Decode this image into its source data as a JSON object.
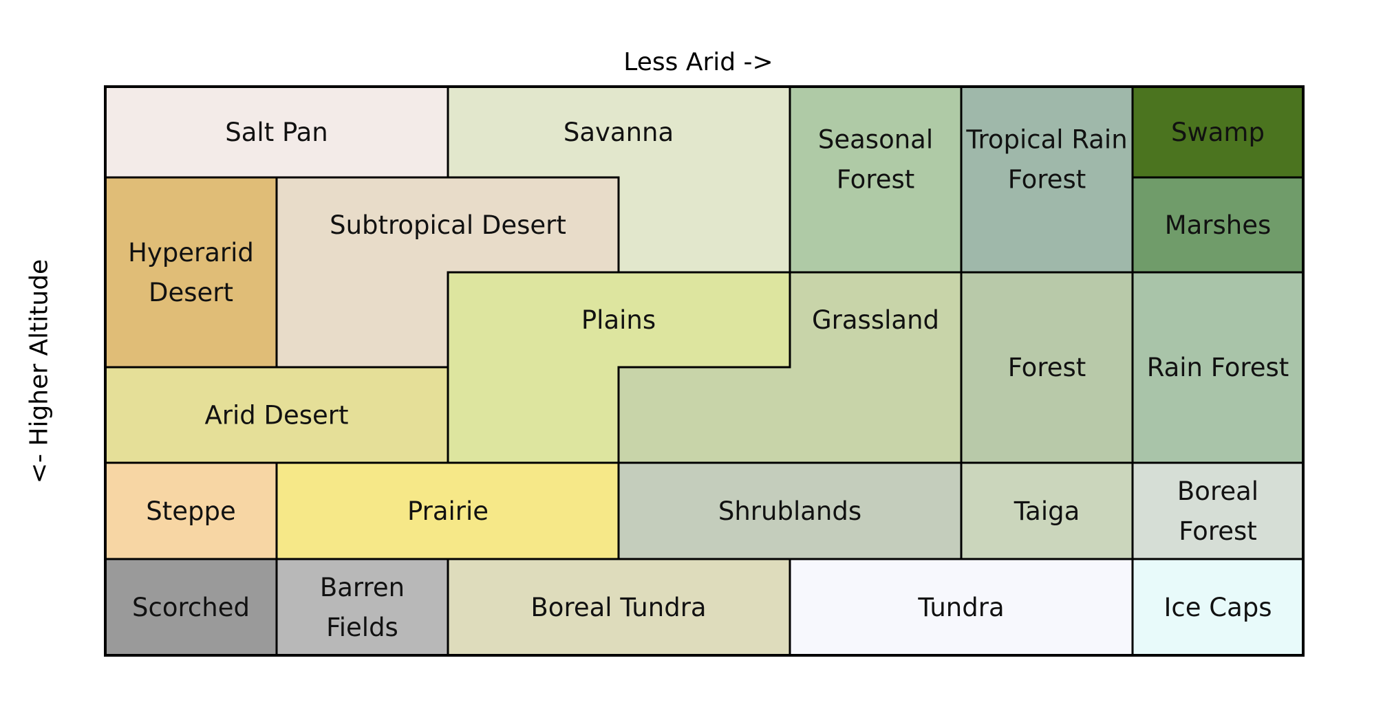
{
  "axes": {
    "top": "Less Arid ->",
    "left": "<- Higher Altitude"
  },
  "biomes": [
    {
      "key": "salt_pan",
      "lines": [
        "Salt Pan"
      ],
      "color": "#f3ebe8"
    },
    {
      "key": "savanna",
      "lines": [
        "Savanna"
      ],
      "color": "#e2e7cc"
    },
    {
      "key": "seasonal_forest",
      "lines": [
        "Seasonal",
        "Forest"
      ],
      "color": "#afcaa6"
    },
    {
      "key": "tropical_rain_forest",
      "lines": [
        "Tropical Rain",
        "Forest"
      ],
      "color": "#9fb8aa"
    },
    {
      "key": "swamp",
      "lines": [
        "Swamp"
      ],
      "color": "#4b741f"
    },
    {
      "key": "marshes",
      "lines": [
        "Marshes"
      ],
      "color": "#709c6a"
    },
    {
      "key": "hyperarid_desert",
      "lines": [
        "Hyperarid",
        "Desert"
      ],
      "color": "#e0bd77"
    },
    {
      "key": "subtropical_desert",
      "lines": [
        "Subtropical Desert"
      ],
      "color": "#e8dcc9"
    },
    {
      "key": "plains",
      "lines": [
        "Plains"
      ],
      "color": "#dde59f"
    },
    {
      "key": "grassland",
      "lines": [
        "Grassland"
      ],
      "color": "#c8d4a9"
    },
    {
      "key": "forest",
      "lines": [
        "Forest"
      ],
      "color": "#b8c9a9"
    },
    {
      "key": "rain_forest",
      "lines": [
        "Rain Forest"
      ],
      "color": "#a9c4a9"
    },
    {
      "key": "arid_desert",
      "lines": [
        "Arid Desert"
      ],
      "color": "#e5df98"
    },
    {
      "key": "steppe",
      "lines": [
        "Steppe"
      ],
      "color": "#f7d6a4"
    },
    {
      "key": "prairie",
      "lines": [
        "Prairie"
      ],
      "color": "#f6e888"
    },
    {
      "key": "shrublands",
      "lines": [
        "Shrublands"
      ],
      "color": "#c4cdbc"
    },
    {
      "key": "taiga",
      "lines": [
        "Taiga"
      ],
      "color": "#cbd6bc"
    },
    {
      "key": "boreal_forest",
      "lines": [
        "Boreal",
        "Forest"
      ],
      "color": "#d6ded6"
    },
    {
      "key": "scorched",
      "lines": [
        "Scorched"
      ],
      "color": "#9a9a9a"
    },
    {
      "key": "barren_fields",
      "lines": [
        "Barren",
        "Fields"
      ],
      "color": "#b8b8b8"
    },
    {
      "key": "boreal_tundra",
      "lines": [
        "Boreal Tundra"
      ],
      "color": "#dedcbc"
    },
    {
      "key": "tundra",
      "lines": [
        "Tundra"
      ],
      "color": "#f7f8fd"
    },
    {
      "key": "ice_caps",
      "lines": [
        "Ice Caps"
      ],
      "color": "#e8fafa"
    }
  ]
}
